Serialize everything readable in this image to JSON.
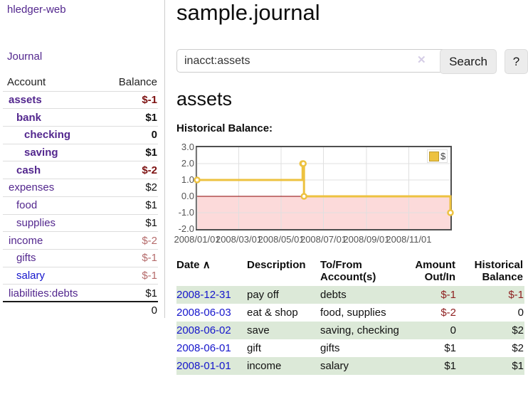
{
  "sidebar": {
    "brand": "hledger-web",
    "nav_journal": "Journal",
    "table": {
      "account_header": "Account",
      "balance_header": "Balance",
      "accounts": [
        {
          "name": "assets",
          "indent": 0,
          "balance": "$-1",
          "bold": true,
          "neg": "strong",
          "unvisited": false
        },
        {
          "name": "bank",
          "indent": 1,
          "balance": "$1",
          "bold": true,
          "neg": "none",
          "unvisited": false
        },
        {
          "name": "checking",
          "indent": 2,
          "balance": "0",
          "bold": true,
          "neg": "none",
          "unvisited": false
        },
        {
          "name": "saving",
          "indent": 2,
          "balance": "$1",
          "bold": true,
          "neg": "none",
          "unvisited": false
        },
        {
          "name": "cash",
          "indent": 1,
          "balance": "$-2",
          "bold": true,
          "neg": "strong",
          "unvisited": false
        },
        {
          "name": "expenses",
          "indent": 0,
          "balance": "$2",
          "bold": false,
          "neg": "none",
          "unvisited": false
        },
        {
          "name": "food",
          "indent": 1,
          "balance": "$1",
          "bold": false,
          "neg": "none",
          "unvisited": false
        },
        {
          "name": "supplies",
          "indent": 1,
          "balance": "$1",
          "bold": false,
          "neg": "none",
          "unvisited": false
        },
        {
          "name": "income",
          "indent": 0,
          "balance": "$-2",
          "bold": false,
          "neg": "soft",
          "unvisited": false
        },
        {
          "name": "gifts",
          "indent": 1,
          "balance": "$-1",
          "bold": false,
          "neg": "soft",
          "unvisited": false
        },
        {
          "name": "salary",
          "indent": 1,
          "balance": "$-1",
          "bold": false,
          "neg": "soft",
          "unvisited": true
        },
        {
          "name": "liabilities:debts",
          "indent": 0,
          "balance": "$1",
          "bold": false,
          "neg": "none",
          "unvisited": false
        }
      ],
      "total": "0"
    }
  },
  "header": {
    "title": "sample.journal"
  },
  "search": {
    "query": "inacct:assets",
    "clear_icon": "✕",
    "button": "Search",
    "help_button": "?"
  },
  "account_page": {
    "heading": "assets",
    "chart_label": "Historical Balance:"
  },
  "chart_data": {
    "type": "line",
    "title": "Historical Balance",
    "step": true,
    "series": [
      {
        "name": "$",
        "color": "#edc240",
        "points": [
          {
            "date": "2008/01/01",
            "value": 1
          },
          {
            "date": "2008/06/01",
            "value": 2
          },
          {
            "date": "2008/06/02",
            "value": 2
          },
          {
            "date": "2008/06/03",
            "value": 0
          },
          {
            "date": "2008/12/31",
            "value": -1
          }
        ]
      }
    ],
    "x_range": [
      "2008/01/01",
      "2008/12/31"
    ],
    "xticks": [
      "2008/01/01",
      "2008/03/01",
      "2008/05/01",
      "2008/07/01",
      "2008/09/01",
      "2008/11/01"
    ],
    "ylim": [
      -2,
      3
    ],
    "yticks": [
      "3.0",
      "2.0",
      "1.0",
      "0.0",
      "-1.0",
      "-2.0"
    ],
    "grid": true,
    "negative_fill": "#fcdada",
    "zero_line_color": "#8b0000",
    "legend": {
      "label": "$",
      "position": "top-right"
    }
  },
  "register": {
    "columns": [
      "Date",
      "Description",
      "To/From Account(s)",
      "Amount Out/In",
      "Historical Balance"
    ],
    "sort_icon": "∧",
    "rows": [
      {
        "date": "2008-12-31",
        "description": "pay off",
        "accounts": "debts",
        "amount": "$-1",
        "amount_neg": true,
        "balance": "$-1",
        "balance_neg": true
      },
      {
        "date": "2008-06-03",
        "description": "eat & shop",
        "accounts": "food, supplies",
        "amount": "$-2",
        "amount_neg": true,
        "balance": "0",
        "balance_neg": false
      },
      {
        "date": "2008-06-02",
        "description": "save",
        "accounts": "saving, checking",
        "amount": "0",
        "amount_neg": false,
        "balance": "$2",
        "balance_neg": false
      },
      {
        "date": "2008-06-01",
        "description": "gift",
        "accounts": "gifts",
        "amount": "$1",
        "amount_neg": false,
        "balance": "$2",
        "balance_neg": false
      },
      {
        "date": "2008-01-01",
        "description": "income",
        "accounts": "salary",
        "amount": "$1",
        "amount_neg": false,
        "balance": "$1",
        "balance_neg": false
      }
    ]
  }
}
